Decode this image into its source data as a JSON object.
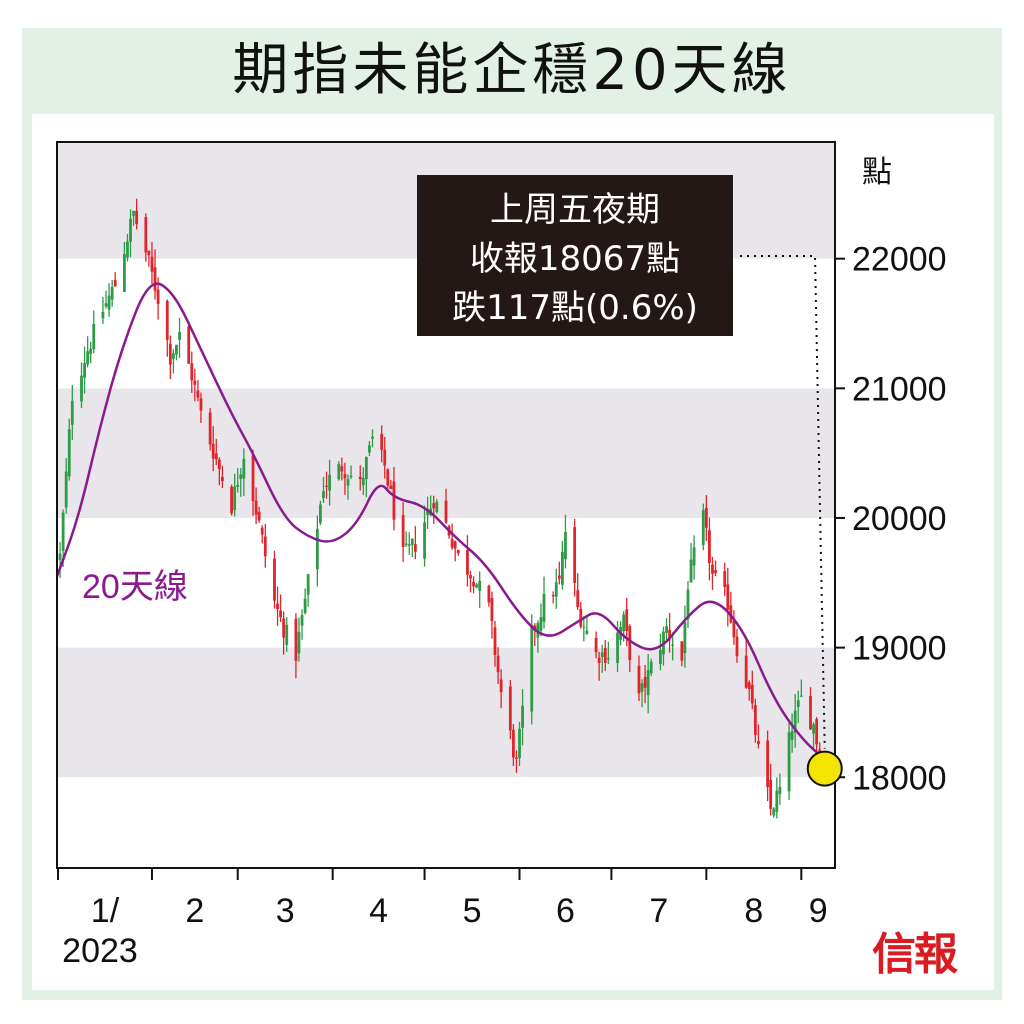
{
  "title": "期指未能企穩20天線",
  "publisher": "信報",
  "colors": {
    "up": "#2f9a47",
    "down": "#e0242b",
    "ma": "#8b1a8f",
    "band": "#e8e6ea",
    "frame_bg": "#e3f0e5",
    "highlight": "#f5e400"
  },
  "chart_data": {
    "type": "candlestick",
    "title": "期指未能企穩20天線",
    "yunit": "點",
    "ylim": [
      17300,
      22900
    ],
    "yticks": [
      18000,
      19000,
      20000,
      21000,
      22000
    ],
    "xlim": [
      "2023-01-01",
      "2023-09-12"
    ],
    "xticks": [
      {
        "date": "2023-01-01",
        "label": "1/",
        "sublabel": "2023"
      },
      {
        "date": "2023-02-01",
        "label": "2"
      },
      {
        "date": "2023-03-01",
        "label": "3"
      },
      {
        "date": "2023-04-01",
        "label": "4"
      },
      {
        "date": "2023-05-01",
        "label": "5"
      },
      {
        "date": "2023-06-01",
        "label": "6"
      },
      {
        "date": "2023-07-01",
        "label": "7"
      },
      {
        "date": "2023-08-01",
        "label": "8"
      },
      {
        "date": "2023-09-01",
        "label": "9"
      }
    ],
    "grid": "alternating horizontal bands",
    "close_path": [
      [
        "2023-01-02",
        19700
      ],
      [
        "2023-01-06",
        20950
      ],
      [
        "2023-01-11",
        21300
      ],
      [
        "2023-01-16",
        21600
      ],
      [
        "2023-01-20",
        21800
      ],
      [
        "2023-01-26",
        22350
      ],
      [
        "2023-01-30",
        22050
      ],
      [
        "2023-02-03",
        21700
      ],
      [
        "2023-02-07",
        21250
      ],
      [
        "2023-02-10",
        21400
      ],
      [
        "2023-02-14",
        21100
      ],
      [
        "2023-02-17",
        20800
      ],
      [
        "2023-02-22",
        20450
      ],
      [
        "2023-02-27",
        20100
      ],
      [
        "2023-03-03",
        20500
      ],
      [
        "2023-03-08",
        19950
      ],
      [
        "2023-03-13",
        19350
      ],
      [
        "2023-03-16",
        19150
      ],
      [
        "2023-03-20",
        18950
      ],
      [
        "2023-03-24",
        19500
      ],
      [
        "2023-03-29",
        20250
      ],
      [
        "2023-04-04",
        20400
      ],
      [
        "2023-04-10",
        20250
      ],
      [
        "2023-04-14",
        20600
      ],
      [
        "2023-04-18",
        20400
      ],
      [
        "2023-04-24",
        19700
      ],
      [
        "2023-04-28",
        19800
      ],
      [
        "2023-05-04",
        20150
      ],
      [
        "2023-05-09",
        19900
      ],
      [
        "2023-05-12",
        19700
      ],
      [
        "2023-05-17",
        19550
      ],
      [
        "2023-05-22",
        19300
      ],
      [
        "2023-05-26",
        18650
      ],
      [
        "2023-05-31",
        18100
      ],
      [
        "2023-06-05",
        19100
      ],
      [
        "2023-06-09",
        19350
      ],
      [
        "2023-06-14",
        19500
      ],
      [
        "2023-06-16",
        19900
      ],
      [
        "2023-06-20",
        19300
      ],
      [
        "2023-06-26",
        18950
      ],
      [
        "2023-06-30",
        18950
      ],
      [
        "2023-07-05",
        19200
      ],
      [
        "2023-07-10",
        18600
      ],
      [
        "2023-07-14",
        18850
      ],
      [
        "2023-07-19",
        19150
      ],
      [
        "2023-07-24",
        18900
      ],
      [
        "2023-07-26",
        19500
      ],
      [
        "2023-07-31",
        20000
      ],
      [
        "2023-08-03",
        19550
      ],
      [
        "2023-08-08",
        19350
      ],
      [
        "2023-08-11",
        19000
      ],
      [
        "2023-08-15",
        18650
      ],
      [
        "2023-08-18",
        18200
      ],
      [
        "2023-08-22",
        17750
      ],
      [
        "2023-08-25",
        17900
      ],
      [
        "2023-08-29",
        18400
      ],
      [
        "2023-09-01",
        18600
      ],
      [
        "2023-09-05",
        18400
      ],
      [
        "2023-09-08",
        18067
      ]
    ],
    "series": [
      {
        "name": "20天線",
        "type": "line",
        "points": [
          [
            "2023-01-01",
            19550
          ],
          [
            "2023-01-08",
            20000
          ],
          [
            "2023-01-15",
            20700
          ],
          [
            "2023-01-22",
            21300
          ],
          [
            "2023-01-31",
            21850
          ],
          [
            "2023-02-08",
            21750
          ],
          [
            "2023-02-17",
            21300
          ],
          [
            "2023-02-27",
            20800
          ],
          [
            "2023-03-06",
            20500
          ],
          [
            "2023-03-16",
            20000
          ],
          [
            "2023-03-24",
            19850
          ],
          [
            "2023-04-01",
            19800
          ],
          [
            "2023-04-09",
            19950
          ],
          [
            "2023-04-16",
            20300
          ],
          [
            "2023-04-21",
            20150
          ],
          [
            "2023-05-01",
            20100
          ],
          [
            "2023-05-11",
            19850
          ],
          [
            "2023-05-21",
            19650
          ],
          [
            "2023-06-01",
            19250
          ],
          [
            "2023-06-10",
            19050
          ],
          [
            "2023-06-20",
            19200
          ],
          [
            "2023-06-27",
            19300
          ],
          [
            "2023-07-06",
            19050
          ],
          [
            "2023-07-16",
            18950
          ],
          [
            "2023-07-26",
            19250
          ],
          [
            "2023-08-03",
            19400
          ],
          [
            "2023-08-13",
            19150
          ],
          [
            "2023-08-23",
            18600
          ],
          [
            "2023-09-01",
            18300
          ],
          [
            "2023-09-08",
            18150
          ]
        ]
      }
    ],
    "annotations": [
      {
        "name": "20天線",
        "text": "20天線"
      },
      {
        "name": "last-close",
        "lines": [
          "上周五夜期",
          "收報18067點",
          "跌117點(0.6%)"
        ],
        "date": "2023-09-08",
        "value": 18067
      }
    ]
  }
}
